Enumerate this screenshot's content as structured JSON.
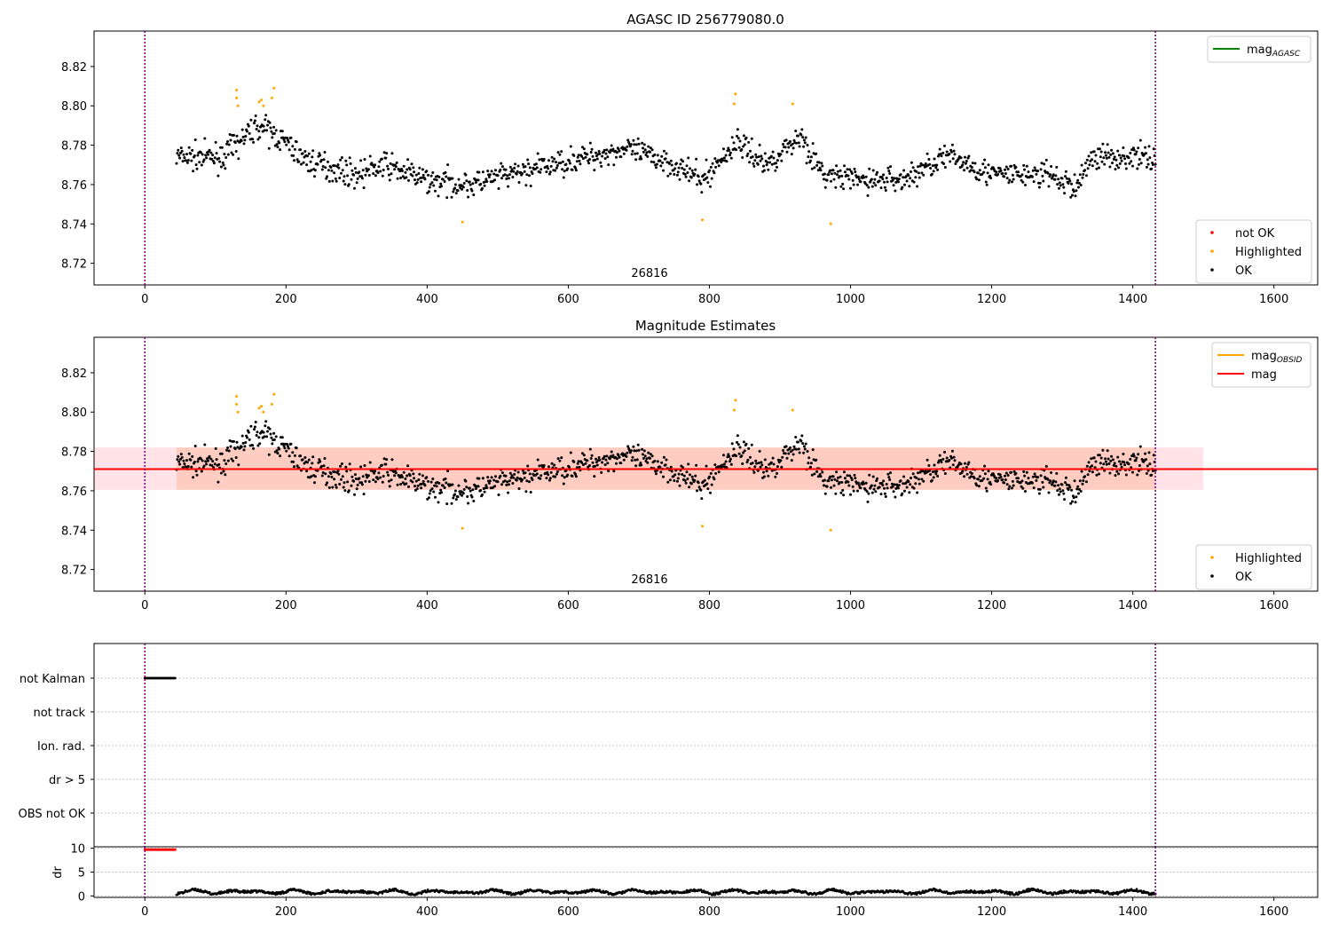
{
  "chart_data": [
    {
      "type": "scatter",
      "title": "AGASC ID 256779080.0",
      "xlim": [
        -72,
        1662
      ],
      "ylim": [
        8.709,
        8.838
      ],
      "x_ticks": [
        0,
        200,
        400,
        600,
        800,
        1000,
        1200,
        1400,
        1600
      ],
      "x_tick_labels": [
        "0",
        "200",
        "400",
        "600",
        "800",
        "1000",
        "1200",
        "1400",
        "1600"
      ],
      "y_ticks": [
        8.72,
        8.74,
        8.76,
        8.78,
        8.8,
        8.82
      ],
      "y_tick_labels": [
        "8.72",
        "8.74",
        "8.76",
        "8.78",
        "8.80",
        "8.82"
      ],
      "grid": false,
      "vlines": [
        0,
        1432
      ],
      "vline_color": "#800080",
      "annotation": "26816",
      "legend_upper": [
        {
          "label": "mag",
          "sub": "AGASC",
          "color": "#008000",
          "kind": "line"
        }
      ],
      "legend_lower": [
        {
          "label": "not OK",
          "color": "#ff0000",
          "kind": "marker"
        },
        {
          "label": "Highlighted",
          "color": "#ffa500",
          "kind": "marker"
        },
        {
          "label": "OK",
          "color": "#000000",
          "kind": "marker"
        }
      ],
      "series": [
        {
          "name": "OK",
          "color": "#000000",
          "x_range": [
            45,
            1432
          ],
          "n_points": 1250,
          "trend": [
            [
              45,
              8.774
            ],
            [
              110,
              8.774
            ],
            [
              160,
              8.79
            ],
            [
              190,
              8.784
            ],
            [
              230,
              8.772
            ],
            [
              300,
              8.765
            ],
            [
              340,
              8.77
            ],
            [
              400,
              8.762
            ],
            [
              460,
              8.76
            ],
            [
              520,
              8.765
            ],
            [
              600,
              8.772
            ],
            [
              680,
              8.778
            ],
            [
              740,
              8.772
            ],
            [
              790,
              8.762
            ],
            [
              840,
              8.782
            ],
            [
              880,
              8.77
            ],
            [
              930,
              8.785
            ],
            [
              960,
              8.765
            ],
            [
              1020,
              8.762
            ],
            [
              1080,
              8.763
            ],
            [
              1130,
              8.774
            ],
            [
              1160,
              8.772
            ],
            [
              1200,
              8.765
            ],
            [
              1280,
              8.765
            ],
            [
              1320,
              8.758
            ],
            [
              1340,
              8.774
            ],
            [
              1432,
              8.774
            ]
          ],
          "scatter": 0.0075
        },
        {
          "name": "Highlighted",
          "color": "#ffa500",
          "points": [
            [
              130,
              8.808
            ],
            [
              130,
              8.804
            ],
            [
              132,
              8.8
            ],
            [
              162,
              8.802
            ],
            [
              165,
              8.803
            ],
            [
              168,
              8.8
            ],
            [
              183,
              8.809
            ],
            [
              180,
              8.804
            ],
            [
              450,
              8.741
            ],
            [
              790,
              8.742
            ],
            [
              837,
              8.806
            ],
            [
              835,
              8.801
            ],
            [
              918,
              8.801
            ],
            [
              972,
              8.74
            ]
          ]
        },
        {
          "name": "not OK",
          "color": "#ff0000",
          "points": []
        }
      ]
    },
    {
      "type": "scatter",
      "title": "Magnitude Estimates",
      "xlim": [
        -72,
        1662
      ],
      "ylim": [
        8.709,
        8.838
      ],
      "x_ticks": [
        0,
        200,
        400,
        600,
        800,
        1000,
        1200,
        1400,
        1600
      ],
      "x_tick_labels": [
        "0",
        "200",
        "400",
        "600",
        "800",
        "1000",
        "1200",
        "1400",
        "1600"
      ],
      "y_ticks": [
        8.72,
        8.74,
        8.76,
        8.78,
        8.8,
        8.82
      ],
      "y_tick_labels": [
        "8.72",
        "8.74",
        "8.76",
        "8.78",
        "8.80",
        "8.82"
      ],
      "grid": false,
      "vlines": [
        0,
        1432
      ],
      "annotation": "26816",
      "mag_line": {
        "value": 8.771,
        "color": "#ff0000",
        "x_range": [
          -72,
          1662
        ]
      },
      "mag_band": {
        "range": [
          8.7605,
          8.782
        ],
        "x_range": [
          -72,
          1500
        ],
        "color": "#ffc0cb"
      },
      "obsid_band": {
        "range": [
          8.7605,
          8.782
        ],
        "x_range": [
          45,
          1432
        ],
        "color": "#ffa07a"
      },
      "legend_upper": [
        {
          "label": "mag",
          "sub": "OBSID",
          "color": "#ffa500",
          "kind": "line"
        },
        {
          "label": "mag",
          "sub": "",
          "color": "#ff0000",
          "kind": "line"
        }
      ],
      "legend_lower": [
        {
          "label": "Highlighted",
          "color": "#ffa500",
          "kind": "marker"
        },
        {
          "label": "OK",
          "color": "#000000",
          "kind": "marker"
        }
      ],
      "series_ref": "same points as AGASC ID panel"
    },
    {
      "type": "scatter",
      "title": "",
      "xlim": [
        -72,
        1662
      ],
      "categories": [
        "not Kalman",
        "not track",
        "Ion. rad.",
        "dr > 5",
        "OBS not OK"
      ],
      "grid": "horizontal dotted",
      "vlines": [
        0,
        1432
      ],
      "flags": [
        {
          "category": "not Kalman",
          "x_range": [
            0,
            44
          ],
          "color": "#000000"
        }
      ]
    },
    {
      "type": "scatter",
      "title": "",
      "ylabel": "dr",
      "xlim": [
        -72,
        1662
      ],
      "ylim": [
        -0.3,
        10.3
      ],
      "y_ticks": [
        0,
        5,
        10
      ],
      "y_tick_labels": [
        "0",
        "5",
        "10"
      ],
      "x_ticks": [
        0,
        200,
        400,
        600,
        800,
        1000,
        1200,
        1400,
        1600
      ],
      "x_tick_labels": [
        "0",
        "200",
        "400",
        "600",
        "800",
        "1000",
        "1200",
        "1400",
        "1600"
      ],
      "grid": "horizontal dotted",
      "vlines": [
        0,
        1432
      ],
      "series": [
        {
          "name": "dr > 5 (clipped)",
          "color": "#ff0000",
          "x_range": [
            0,
            44
          ],
          "value": 9.7
        },
        {
          "name": "dr",
          "color": "#000000",
          "x_range": [
            45,
            1432
          ],
          "value_range": [
            0.2,
            1.8
          ]
        }
      ]
    }
  ]
}
